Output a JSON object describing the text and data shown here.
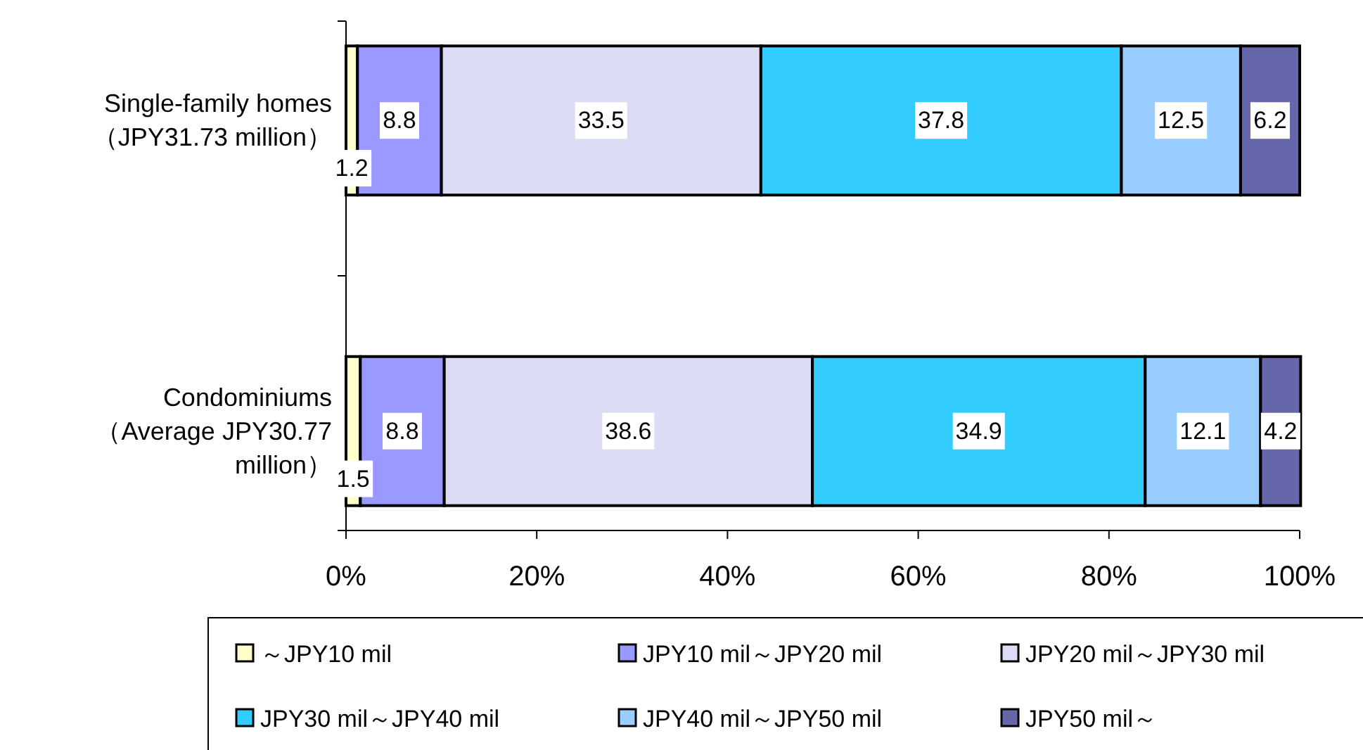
{
  "chart_data": {
    "type": "bar",
    "orientation": "horizontal",
    "stacked": true,
    "categories": [
      "Single-family homes\n（JPY31.73 million）",
      "Condominiums\n（Average JPY30.77\nmillion）"
    ],
    "series": [
      {
        "name": "～JPY10 mil",
        "color": "#ffffcc",
        "values": [
          1.2,
          1.5
        ]
      },
      {
        "name": "JPY10 mil～JPY20 mil",
        "color": "#9999ff",
        "values": [
          8.8,
          8.8
        ]
      },
      {
        "name": "JPY20 mil～JPY30 mil",
        "color": "#dcdcf4",
        "values": [
          33.5,
          38.6
        ]
      },
      {
        "name": "JPY30 mil～JPY40 mil",
        "color": "#33ccff",
        "values": [
          37.8,
          34.9
        ]
      },
      {
        "name": "JPY40 mil～JPY50 mil",
        "color": "#99ccff",
        "values": [
          12.5,
          12.1
        ]
      },
      {
        "name": "JPY50 mil～",
        "color": "#6666aa",
        "values": [
          6.2,
          4.2
        ]
      }
    ],
    "xlim": [
      0,
      100
    ],
    "xticks": [
      {
        "value": 0,
        "label": "0%"
      },
      {
        "value": 20,
        "label": "20%"
      },
      {
        "value": 40,
        "label": "40%"
      },
      {
        "value": 60,
        "label": "60%"
      },
      {
        "value": 80,
        "label": "80%"
      },
      {
        "value": 100,
        "label": "100%"
      }
    ],
    "data_labels": true,
    "legend": "bottom"
  }
}
